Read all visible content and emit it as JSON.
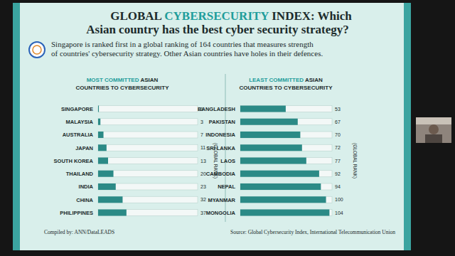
{
  "page": {
    "title_lines": [
      [
        "GLOBAL ",
        "CYBERSECURITY",
        " INDEX: Which"
      ],
      [
        "Asian country has the best cyber security strategy?"
      ]
    ],
    "subtitle_lines": [
      "Singapore is ranked first in a global ranking of 164 countries that measures strength",
      "of countries' cybersecurity strategy. Other Asian countries have holes in their defences."
    ],
    "compiled_by": "Compiled by: ANN/DataLEADS",
    "source": "Source: Global Cybersecurity Index, International Telecommunication Union"
  },
  "chart_data": [
    {
      "type": "bar",
      "orientation": "horizontal",
      "title": "MOST COMMITTED ASIAN COUNTRIES TO CYBERSECURITY",
      "xlabel": "(GLOBAL RANK)",
      "categories": [
        "SINGAPORE",
        "MALAYSIA",
        "AUSTRALIA",
        "JAPAN",
        "SOUTH KOREA",
        "THAILAND",
        "INDIA",
        "CHINA",
        "PHILIPPINES"
      ],
      "values": [
        1,
        3,
        7,
        11,
        13,
        20,
        23,
        32,
        37
      ],
      "color": "#2b8a86",
      "xlim": [
        0,
        130
      ],
      "tick_labels": false,
      "grid": false,
      "data_labels": true
    },
    {
      "type": "bar",
      "orientation": "horizontal",
      "title": "LEAST COMMITTED ASIAN COUNTRIES TO CYBERSECURITY",
      "xlabel": "(GLOBAL RANK)",
      "categories": [
        "BANGLADESH",
        "PAKISTAN",
        "INDONESIA",
        "SRI LANKA",
        "LAOS",
        "CAMBODIA",
        "NEPAL",
        "MYANMAR",
        "MONGOLIA"
      ],
      "values": [
        53,
        67,
        70,
        72,
        77,
        92,
        94,
        100,
        104
      ],
      "color": "#2b8a86",
      "xlim": [
        0,
        107
      ],
      "tick_labels": false,
      "grid": false,
      "data_labels": true
    }
  ]
}
